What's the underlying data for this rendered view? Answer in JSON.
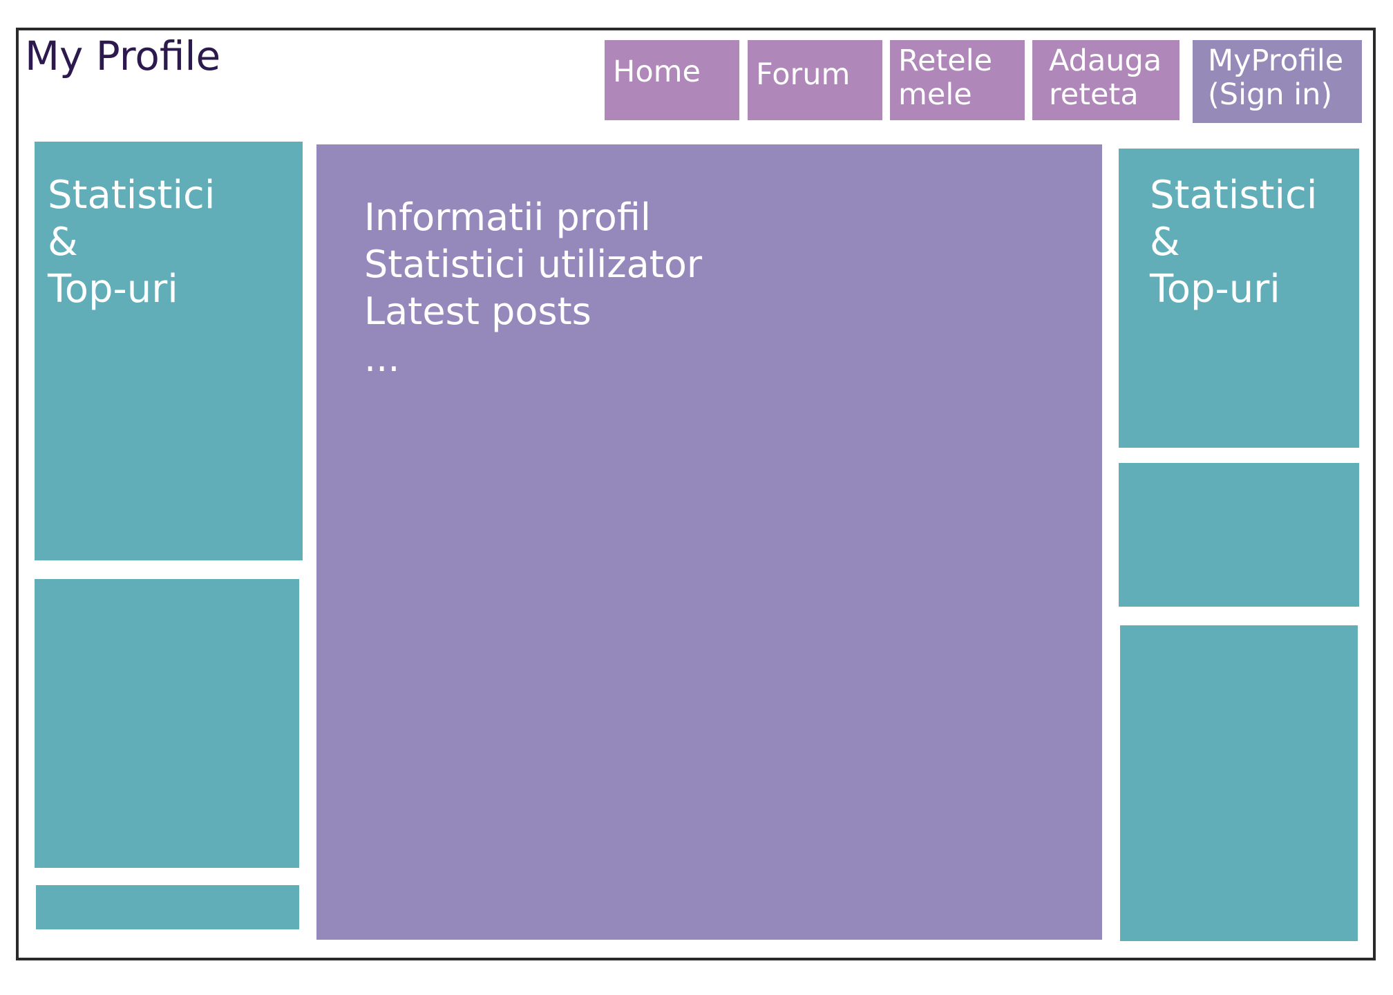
{
  "header": {
    "title": "My Profile"
  },
  "nav": {
    "home": "Home",
    "forum": "Forum",
    "retele": "Retele\nmele",
    "adauga": "Adauga\nreteta",
    "profile": "MyProfile\n(Sign in)"
  },
  "left_sidebar": {
    "stats_panel": {
      "line1": "Statistici",
      "line2": "&",
      "line3": "Top-uri"
    }
  },
  "main": {
    "line1": "Informatii profil",
    "line2": "Statistici utilizator",
    "line3": "Latest posts",
    "line4": "..."
  },
  "right_sidebar": {
    "stats_panel": {
      "line1": "Statistici",
      "line2": "&",
      "line3": "Top-uri"
    }
  },
  "colors": {
    "nav_button": "#af87b9",
    "nav_button_active": "#968ab9",
    "sidebar_panel": "#61adb8",
    "main_panel": "#9589bb",
    "title_text": "#2c1a4e"
  }
}
